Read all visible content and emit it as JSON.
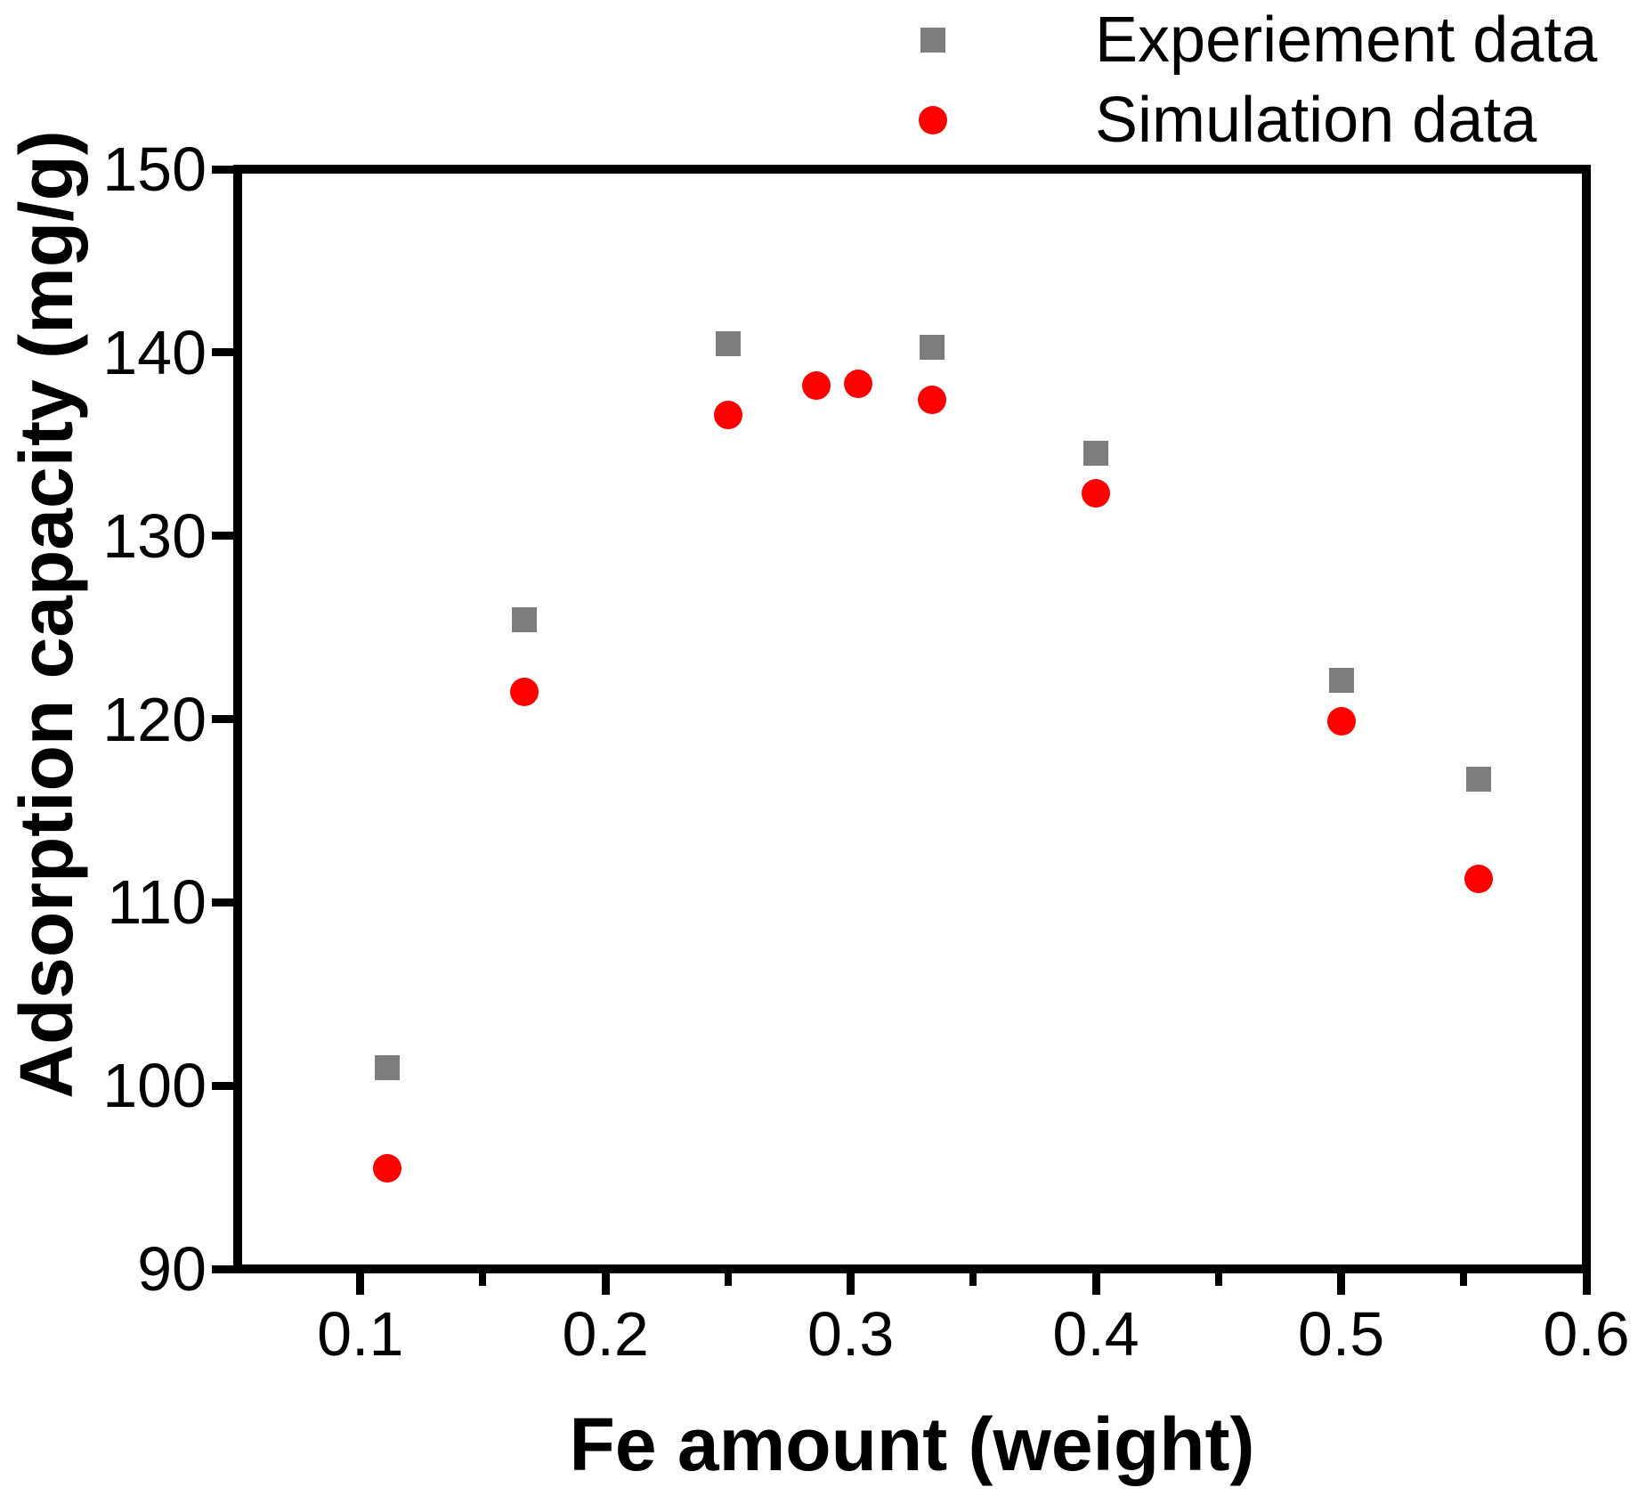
{
  "chart_data": {
    "type": "scatter",
    "title": "",
    "xlabel": "Fe amount (weight)",
    "ylabel": "Adsorption capacity (mg/g)",
    "xlim": [
      0.05,
      0.6
    ],
    "ylim": [
      90,
      150
    ],
    "x_ticks": [
      0.1,
      0.2,
      0.3,
      0.4,
      0.5,
      0.6
    ],
    "x_tick_labels": [
      "0.1",
      "0.2",
      "0.3",
      "0.4",
      "0.5",
      "0.6"
    ],
    "x_minor_ticks": [
      0.15,
      0.25,
      0.35,
      0.45,
      0.55
    ],
    "y_ticks": [
      90,
      100,
      110,
      120,
      130,
      140,
      150
    ],
    "y_tick_labels": [
      "90",
      "100",
      "110",
      "120",
      "130",
      "140",
      "150"
    ],
    "grid": false,
    "legend_position": "top-right-outside",
    "series": [
      {
        "name": "Experiement data",
        "marker": "square",
        "color": "#7d7d7d",
        "x": [
          0.111,
          0.167,
          0.25,
          0.333,
          0.4,
          0.5,
          0.556
        ],
        "y": [
          101.0,
          125.4,
          140.5,
          140.3,
          134.5,
          122.1,
          116.7
        ]
      },
      {
        "name": "Simulation data",
        "marker": "circle",
        "color": "#ff0000",
        "x": [
          0.111,
          0.167,
          0.25,
          0.286,
          0.303,
          0.333,
          0.4,
          0.5,
          0.556
        ],
        "y": [
          95.5,
          121.5,
          136.6,
          138.2,
          138.3,
          137.4,
          132.3,
          119.9,
          111.3
        ]
      }
    ]
  },
  "axis_color": "#000000",
  "background_color": "#ffffff"
}
